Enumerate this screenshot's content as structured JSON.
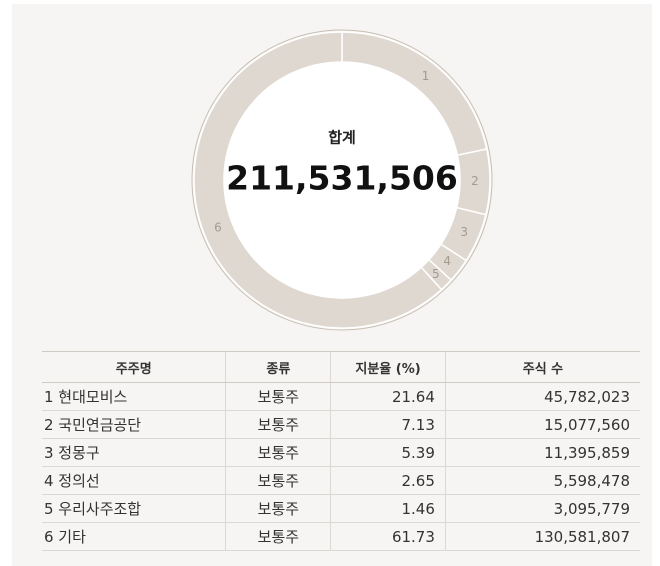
{
  "chart_data": {
    "type": "donut",
    "center_title": "합계",
    "center_value": {
      "value": 211531506,
      "label": "211,531,506"
    },
    "categories": [
      "1",
      "2",
      "3",
      "4",
      "5",
      "6"
    ],
    "values": [
      21.64,
      7.13,
      5.39,
      2.65,
      1.46,
      61.73
    ],
    "color": "#dfd8d0"
  },
  "table": {
    "columns": [
      "주주명",
      "종류",
      "지분율 (%)",
      "주식 수"
    ],
    "rows": [
      [
        "1 현대모비스",
        "보통주",
        "21.64",
        "45,782,023"
      ],
      [
        "2 국민연금공단",
        "보통주",
        "7.13",
        "15,077,560"
      ],
      [
        "3 정몽구",
        "보통주",
        "5.39",
        "11,395,859"
      ],
      [
        "4 정의선",
        "보통주",
        "2.65",
        "5,598,478"
      ],
      [
        "5 우리사주조합",
        "보통주",
        "1.46",
        "3,095,779"
      ],
      [
        "6 기타",
        "보통주",
        "61.73",
        "130,581,807"
      ]
    ]
  }
}
